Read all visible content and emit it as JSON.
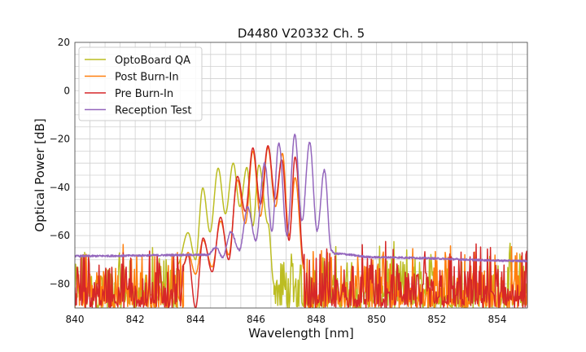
{
  "chart_data": {
    "type": "line",
    "title": "D4480 V20332 Ch. 5",
    "xlabel": "Wavelength [nm]",
    "ylabel": "Optical Power [dB]",
    "xlim": [
      840,
      855
    ],
    "ylim": [
      -90,
      20
    ],
    "xticks": [
      "840",
      "842",
      "844",
      "846",
      "848",
      "850",
      "852",
      "854"
    ],
    "yticks": [
      "20",
      "0",
      "−20",
      "−40",
      "−60",
      "−80"
    ],
    "grid": true,
    "legend_position": "top-left",
    "noise_floor": [
      -90,
      -72
    ],
    "series": [
      {
        "name": "OptoBoard QA",
        "color": "#bcbd22",
        "points": [
          [
            843.4,
            -72
          ],
          [
            843.75,
            -58.8
          ],
          [
            844.0,
            -70
          ],
          [
            844.24,
            -40.3
          ],
          [
            844.48,
            -58.5
          ],
          [
            844.75,
            -32.1
          ],
          [
            844.99,
            -51
          ],
          [
            845.25,
            -30
          ],
          [
            845.47,
            -48
          ],
          [
            845.7,
            -31.8
          ],
          [
            845.9,
            -56
          ],
          [
            846.1,
            -30.8
          ],
          [
            846.4,
            -55
          ],
          [
            846.6,
            -80
          ]
        ],
        "noise_ranges": [
          [
            840,
            843.4
          ],
          [
            846.6,
            855
          ]
        ]
      },
      {
        "name": "Post Burn-In",
        "color": "#ff7f0e",
        "points": [
          [
            843.6,
            -72
          ],
          [
            843.75,
            -67
          ],
          [
            844.0,
            -76
          ],
          [
            844.25,
            -62
          ],
          [
            844.55,
            -73
          ],
          [
            844.83,
            -54
          ],
          [
            845.1,
            -68
          ],
          [
            845.39,
            -37
          ],
          [
            845.65,
            -55
          ],
          [
            845.9,
            -25
          ],
          [
            846.15,
            -52
          ],
          [
            846.4,
            -23.5
          ],
          [
            846.65,
            -48
          ],
          [
            846.88,
            -26
          ],
          [
            847.1,
            -60
          ],
          [
            847.3,
            -36
          ],
          [
            847.6,
            -74
          ]
        ],
        "noise_ranges": [
          [
            840,
            843.6
          ],
          [
            847.6,
            855
          ]
        ]
      },
      {
        "name": "Pre Burn-In",
        "color": "#d62728",
        "points": [
          [
            843.6,
            -72
          ],
          [
            843.75,
            -68
          ],
          [
            844.0,
            -90
          ],
          [
            844.25,
            -61
          ],
          [
            844.55,
            -75
          ],
          [
            844.83,
            -52.4
          ],
          [
            845.1,
            -70
          ],
          [
            845.39,
            -35.5
          ],
          [
            845.65,
            -50
          ],
          [
            845.9,
            -23.7
          ],
          [
            846.15,
            -47
          ],
          [
            846.4,
            -22.8
          ],
          [
            846.65,
            -45
          ],
          [
            846.86,
            -28.7
          ],
          [
            847.1,
            -62
          ],
          [
            847.3,
            -27.5
          ],
          [
            847.6,
            -72
          ]
        ],
        "noise_ranges": [
          [
            840,
            843.6
          ],
          [
            847.6,
            855
          ]
        ]
      },
      {
        "name": "Reception Test",
        "color": "#9467bd",
        "points": [
          [
            840,
            -68.5
          ],
          [
            844.4,
            -68
          ],
          [
            844.68,
            -64.8
          ],
          [
            844.9,
            -69
          ],
          [
            845.17,
            -58.5
          ],
          [
            845.45,
            -66
          ],
          [
            845.73,
            -48.4
          ],
          [
            846.0,
            -62
          ],
          [
            846.29,
            -30
          ],
          [
            846.53,
            -58
          ],
          [
            846.76,
            -21.8
          ],
          [
            847.03,
            -60
          ],
          [
            847.29,
            -18.4
          ],
          [
            847.53,
            -54
          ],
          [
            847.78,
            -21.4
          ],
          [
            848.03,
            -58
          ],
          [
            848.27,
            -32.9
          ],
          [
            848.5,
            -66
          ],
          [
            848.6,
            -67.5
          ],
          [
            850,
            -69
          ],
          [
            855,
            -70.5
          ]
        ],
        "noise_ranges": []
      }
    ]
  }
}
